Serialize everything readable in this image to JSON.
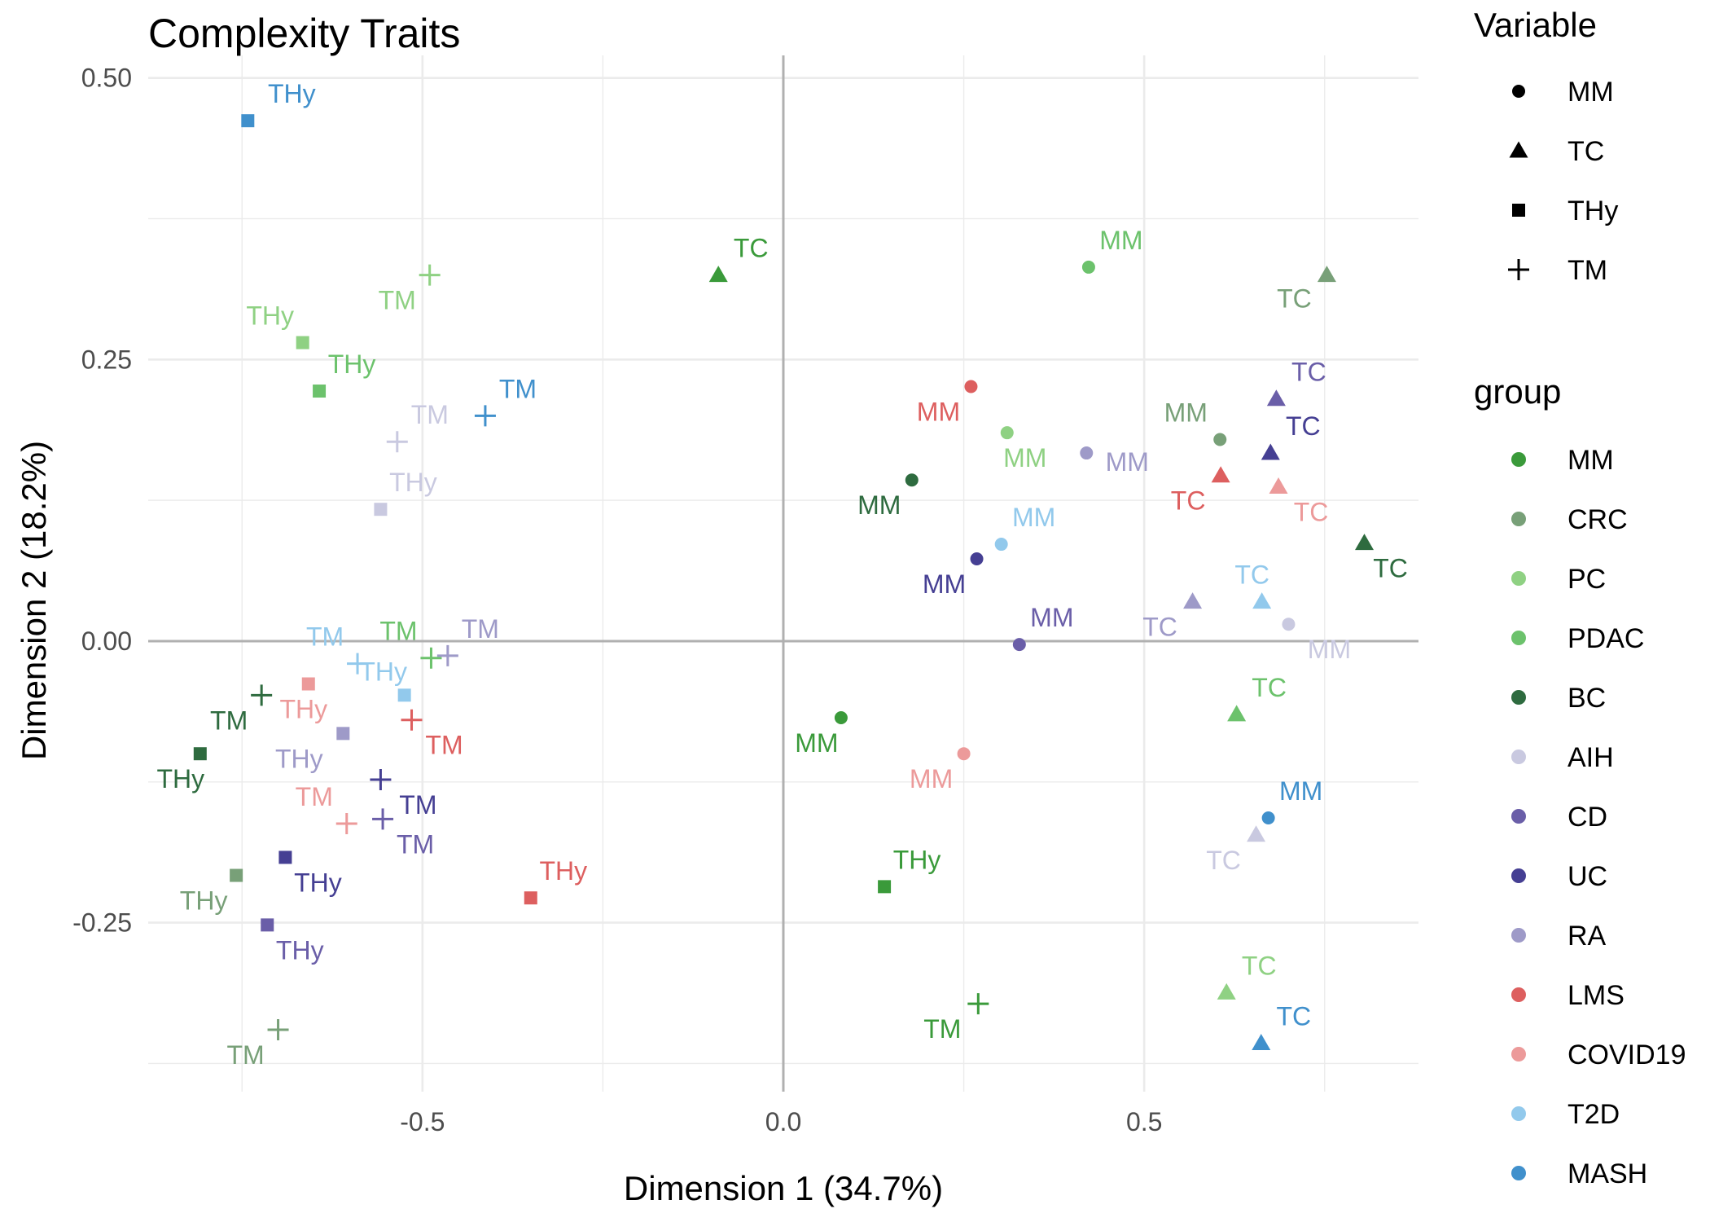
{
  "chart_data": {
    "type": "scatter",
    "title": "Complexity  Traits",
    "xlabel": "Dimension 1 (34.7%)",
    "ylabel": "Dimension 2 (18.2%)",
    "xlim": [
      -0.88,
      0.88
    ],
    "ylim": [
      -0.4,
      0.52
    ],
    "x_ticks": [
      -0.5,
      0.0,
      0.5
    ],
    "x_tick_labels": [
      "-0.5",
      "0.0",
      "0.5"
    ],
    "y_ticks": [
      -0.25,
      0.0,
      0.25,
      0.5
    ],
    "y_tick_labels": [
      "-0.25",
      "0.00",
      "0.25",
      "0.50"
    ],
    "grid": true,
    "reference_lines": [
      0,
      0
    ],
    "legend_position": "right",
    "shape_legend": {
      "title": "Variable",
      "items": [
        {
          "label": "MM",
          "shape": "circle"
        },
        {
          "label": "TC",
          "shape": "triangle"
        },
        {
          "label": "THy",
          "shape": "square"
        },
        {
          "label": "TM",
          "shape": "plus"
        }
      ]
    },
    "color_legend": {
      "title": "group",
      "items": [
        {
          "label": "MM",
          "color": "#3a9a3a"
        },
        {
          "label": "CRC",
          "color": "#78a078"
        },
        {
          "label": "PC",
          "color": "#8fd183"
        },
        {
          "label": "PDAC",
          "color": "#6cc26c"
        },
        {
          "label": "BC",
          "color": "#2e6b3f"
        },
        {
          "label": "AIH",
          "color": "#c9c9e0"
        },
        {
          "label": "CD",
          "color": "#6a5ea8"
        },
        {
          "label": "UC",
          "color": "#453f93"
        },
        {
          "label": "RA",
          "color": "#9e9ac8"
        },
        {
          "label": "LMS",
          "color": "#dd5f5f"
        },
        {
          "label": "COVID19",
          "color": "#ec9a9a"
        },
        {
          "label": "T2D",
          "color": "#92c9ec"
        },
        {
          "label": "MASH",
          "color": "#4090cc"
        }
      ]
    },
    "points": [
      {
        "group": "MM",
        "variable": "MM",
        "x": 0.08,
        "y": -0.068,
        "label": "MM",
        "dx": -30,
        "dy": 42
      },
      {
        "group": "MM",
        "variable": "TC",
        "x": -0.09,
        "y": 0.325,
        "label": "TC",
        "dx": 40,
        "dy": -22
      },
      {
        "group": "MM",
        "variable": "THy",
        "x": 0.14,
        "y": -0.218,
        "label": "THy",
        "dx": 40,
        "dy": -22
      },
      {
        "group": "MM",
        "variable": "TM",
        "x": 0.27,
        "y": -0.322,
        "label": "TM",
        "dx": -44,
        "dy": 42
      },
      {
        "group": "CRC",
        "variable": "MM",
        "x": 0.605,
        "y": 0.179,
        "label": "MM",
        "dx": -42,
        "dy": -22
      },
      {
        "group": "CRC",
        "variable": "TC",
        "x": 0.753,
        "y": 0.325,
        "label": "TC",
        "dx": -40,
        "dy": 40
      },
      {
        "group": "CRC",
        "variable": "THy",
        "x": -0.758,
        "y": -0.208,
        "label": "THy",
        "dx": -40,
        "dy": 42
      },
      {
        "group": "CRC",
        "variable": "TM",
        "x": -0.7,
        "y": -0.345,
        "label": "TM",
        "dx": -40,
        "dy": 42
      },
      {
        "group": "PC",
        "variable": "MM",
        "x": 0.31,
        "y": 0.185,
        "label": "MM",
        "dx": 22,
        "dy": 42
      },
      {
        "group": "PC",
        "variable": "TC",
        "x": 0.614,
        "y": -0.312,
        "label": "TC",
        "dx": 40,
        "dy": -22
      },
      {
        "group": "PC",
        "variable": "THy",
        "x": -0.666,
        "y": 0.265,
        "label": "THy",
        "dx": -40,
        "dy": -22
      },
      {
        "group": "PC",
        "variable": "TM",
        "x": -0.49,
        "y": 0.325,
        "label": "TM",
        "dx": -40,
        "dy": 42
      },
      {
        "group": "PDAC",
        "variable": "MM",
        "x": 0.423,
        "y": 0.332,
        "label": "MM",
        "dx": 40,
        "dy": -22
      },
      {
        "group": "PDAC",
        "variable": "TC",
        "x": 0.628,
        "y": -0.065,
        "label": "TC",
        "dx": 40,
        "dy": -22
      },
      {
        "group": "PDAC",
        "variable": "THy",
        "x": -0.643,
        "y": 0.222,
        "label": "THy",
        "dx": 40,
        "dy": -22
      },
      {
        "group": "PDAC",
        "variable": "TM",
        "x": -0.488,
        "y": -0.015,
        "label": "TM",
        "dx": -40,
        "dy": -22
      },
      {
        "group": "BC",
        "variable": "MM",
        "x": 0.178,
        "y": 0.143,
        "label": "MM",
        "dx": -40,
        "dy": 42
      },
      {
        "group": "BC",
        "variable": "TC",
        "x": 0.805,
        "y": 0.087,
        "label": "TC",
        "dx": 32,
        "dy": 42
      },
      {
        "group": "BC",
        "variable": "THy",
        "x": -0.808,
        "y": -0.1,
        "label": "THy",
        "dx": -24,
        "dy": 42
      },
      {
        "group": "BC",
        "variable": "TM",
        "x": -0.723,
        "y": -0.048,
        "label": "TM",
        "dx": -40,
        "dy": 42
      },
      {
        "group": "AIH",
        "variable": "MM",
        "x": 0.7,
        "y": 0.015,
        "label": "MM",
        "dx": 50,
        "dy": 42
      },
      {
        "group": "AIH",
        "variable": "TC",
        "x": 0.655,
        "y": -0.172,
        "label": "TC",
        "dx": -40,
        "dy": 42
      },
      {
        "group": "AIH",
        "variable": "THy",
        "x": -0.558,
        "y": 0.117,
        "label": "THy",
        "dx": 40,
        "dy": -22
      },
      {
        "group": "AIH",
        "variable": "TM",
        "x": -0.535,
        "y": 0.177,
        "label": "TM",
        "dx": 40,
        "dy": -22
      },
      {
        "group": "CD",
        "variable": "MM",
        "x": 0.327,
        "y": -0.003,
        "label": "MM",
        "dx": 40,
        "dy": -22
      },
      {
        "group": "CD",
        "variable": "TC",
        "x": 0.683,
        "y": 0.215,
        "label": "TC",
        "dx": 40,
        "dy": -22
      },
      {
        "group": "CD",
        "variable": "THy",
        "x": -0.715,
        "y": -0.252,
        "label": "THy",
        "dx": 40,
        "dy": 42
      },
      {
        "group": "CD",
        "variable": "TM",
        "x": -0.555,
        "y": -0.158,
        "label": "TM",
        "dx": 40,
        "dy": 42
      },
      {
        "group": "UC",
        "variable": "MM",
        "x": 0.268,
        "y": 0.073,
        "label": "MM",
        "dx": -40,
        "dy": 42
      },
      {
        "group": "UC",
        "variable": "TC",
        "x": 0.675,
        "y": 0.167,
        "label": "TC",
        "dx": 40,
        "dy": -22
      },
      {
        "group": "UC",
        "variable": "THy",
        "x": -0.69,
        "y": -0.192,
        "label": "THy",
        "dx": 40,
        "dy": 42
      },
      {
        "group": "UC",
        "variable": "TM",
        "x": -0.558,
        "y": -0.123,
        "label": "TM",
        "dx": 46,
        "dy": 42
      },
      {
        "group": "RA",
        "variable": "MM",
        "x": 0.42,
        "y": 0.167,
        "label": "MM",
        "dx": 50,
        "dy": 22
      },
      {
        "group": "RA",
        "variable": "TC",
        "x": 0.567,
        "y": 0.035,
        "label": "TC",
        "dx": -40,
        "dy": 42
      },
      {
        "group": "RA",
        "variable": "THy",
        "x": -0.61,
        "y": -0.082,
        "label": "THy",
        "dx": -54,
        "dy": 42
      },
      {
        "group": "RA",
        "variable": "TM",
        "x": -0.465,
        "y": -0.013,
        "label": "TM",
        "dx": 40,
        "dy": -22
      },
      {
        "group": "LMS",
        "variable": "MM",
        "x": 0.26,
        "y": 0.226,
        "label": "MM",
        "dx": -40,
        "dy": 42
      },
      {
        "group": "LMS",
        "variable": "TC",
        "x": 0.606,
        "y": 0.147,
        "label": "TC",
        "dx": -40,
        "dy": 42
      },
      {
        "group": "LMS",
        "variable": "THy",
        "x": -0.35,
        "y": -0.228,
        "label": "THy",
        "dx": 40,
        "dy": -22
      },
      {
        "group": "LMS",
        "variable": "TM",
        "x": -0.515,
        "y": -0.07,
        "label": "TM",
        "dx": 40,
        "dy": 42
      },
      {
        "group": "COVID19",
        "variable": "MM",
        "x": 0.25,
        "y": -0.1,
        "label": "MM",
        "dx": -40,
        "dy": 42
      },
      {
        "group": "COVID19",
        "variable": "TC",
        "x": 0.686,
        "y": 0.137,
        "label": "TC",
        "dx": 40,
        "dy": 42
      },
      {
        "group": "COVID19",
        "variable": "THy",
        "x": -0.658,
        "y": -0.038,
        "label": "THy",
        "dx": -6,
        "dy": 42
      },
      {
        "group": "COVID19",
        "variable": "TM",
        "x": -0.605,
        "y": -0.162,
        "label": "TM",
        "dx": -40,
        "dy": -22
      },
      {
        "group": "T2D",
        "variable": "MM",
        "x": 0.302,
        "y": 0.086,
        "label": "MM",
        "dx": 40,
        "dy": -22
      },
      {
        "group": "T2D",
        "variable": "TC",
        "x": 0.663,
        "y": 0.035,
        "label": "TC",
        "dx": -12,
        "dy": -22
      },
      {
        "group": "T2D",
        "variable": "THy",
        "x": -0.525,
        "y": -0.048,
        "label": "THy",
        "dx": -26,
        "dy": -18
      },
      {
        "group": "T2D",
        "variable": "TM",
        "x": -0.59,
        "y": -0.02,
        "label": "TM",
        "dx": -40,
        "dy": -22
      },
      {
        "group": "MASH",
        "variable": "MM",
        "x": 0.672,
        "y": -0.157,
        "label": "MM",
        "dx": 40,
        "dy": -22
      },
      {
        "group": "MASH",
        "variable": "TC",
        "x": 0.662,
        "y": -0.357,
        "label": "TC",
        "dx": 40,
        "dy": -22
      },
      {
        "group": "MASH",
        "variable": "THy",
        "x": -0.742,
        "y": 0.462,
        "label": "THy",
        "dx": 54,
        "dy": -22
      },
      {
        "group": "MASH",
        "variable": "TM",
        "x": -0.413,
        "y": 0.2,
        "label": "TM",
        "dx": 40,
        "dy": -22
      }
    ]
  }
}
